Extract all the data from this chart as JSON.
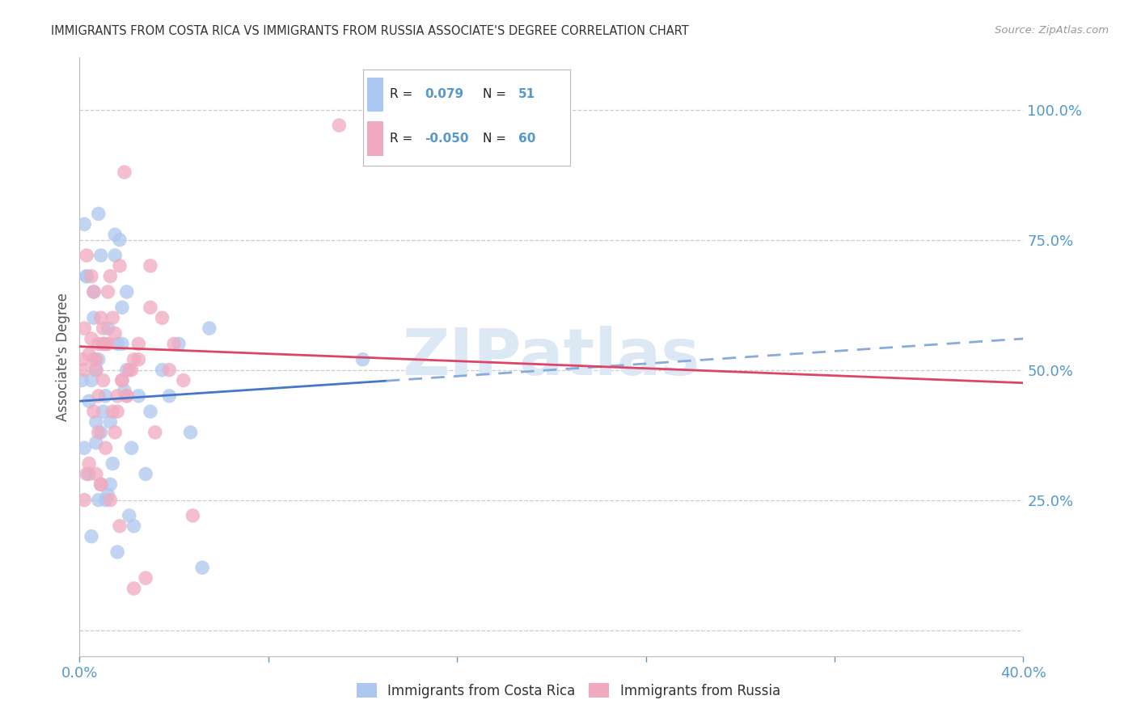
{
  "title": "IMMIGRANTS FROM COSTA RICA VS IMMIGRANTS FROM RUSSIA ASSOCIATE'S DEGREE CORRELATION CHART",
  "source": "Source: ZipAtlas.com",
  "ylabel": "Associate's Degree",
  "blue_color": "#adc8f0",
  "pink_color": "#f0aabf",
  "blue_line_color": "#4477cc",
  "pink_line_color": "#dd4466",
  "blue_dashed_color": "#88aadd",
  "axis_color": "#5599cc",
  "grid_color": "#cccccc",
  "title_color": "#333333",
  "watermark_text": "ZIPatlas",
  "legend_label1": "Immigrants from Costa Rica",
  "legend_label2": "Immigrants from Russia",
  "r1": "0.079",
  "n1": "51",
  "r2": "-0.050",
  "n2": "60",
  "xlim": [
    0.0,
    0.4
  ],
  "ylim": [
    -0.05,
    1.1
  ],
  "y_ticks": [
    0.0,
    0.25,
    0.5,
    0.75,
    1.0
  ],
  "y_tick_labels": [
    "",
    "25.0%",
    "50.0%",
    "75.0%",
    "100.0%"
  ],
  "x_tick_positions": [
    0.0,
    0.08,
    0.16,
    0.24,
    0.32,
    0.4
  ],
  "x_tick_labels": [
    "0.0%",
    "",
    "",
    "",
    "",
    "40.0%"
  ],
  "costa_rica_x": [
    0.005,
    0.01,
    0.018,
    0.025,
    0.008,
    0.012,
    0.02,
    0.03,
    0.035,
    0.003,
    0.007,
    0.015,
    0.022,
    0.004,
    0.009,
    0.016,
    0.028,
    0.006,
    0.011,
    0.019,
    0.013,
    0.017,
    0.002,
    0.008,
    0.014,
    0.021,
    0.005,
    0.01,
    0.016,
    0.023,
    0.007,
    0.012,
    0.003,
    0.009,
    0.015,
    0.02,
    0.001,
    0.006,
    0.011,
    0.018,
    0.004,
    0.008,
    0.013,
    0.002,
    0.007,
    0.12,
    0.055,
    0.038,
    0.042,
    0.047,
    0.052
  ],
  "costa_rica_y": [
    0.48,
    0.55,
    0.62,
    0.45,
    0.52,
    0.58,
    0.65,
    0.42,
    0.5,
    0.68,
    0.4,
    0.72,
    0.35,
    0.44,
    0.38,
    0.55,
    0.3,
    0.6,
    0.25,
    0.46,
    0.28,
    0.75,
    0.78,
    0.8,
    0.32,
    0.22,
    0.18,
    0.42,
    0.15,
    0.2,
    0.36,
    0.26,
    0.68,
    0.72,
    0.76,
    0.5,
    0.48,
    0.65,
    0.45,
    0.55,
    0.3,
    0.25,
    0.4,
    0.35,
    0.5,
    0.52,
    0.58,
    0.45,
    0.55,
    0.38,
    0.12
  ],
  "russia_x": [
    0.004,
    0.009,
    0.015,
    0.022,
    0.006,
    0.011,
    0.018,
    0.025,
    0.03,
    0.002,
    0.007,
    0.013,
    0.02,
    0.003,
    0.008,
    0.014,
    0.021,
    0.005,
    0.01,
    0.016,
    0.012,
    0.019,
    0.001,
    0.006,
    0.011,
    0.017,
    0.004,
    0.009,
    0.015,
    0.023,
    0.007,
    0.012,
    0.002,
    0.008,
    0.014,
    0.018,
    0.003,
    0.007,
    0.01,
    0.016,
    0.005,
    0.009,
    0.013,
    0.002,
    0.006,
    0.01,
    0.017,
    0.023,
    0.028,
    0.032,
    0.11,
    0.04,
    0.038,
    0.044,
    0.048,
    0.025,
    0.02,
    0.03,
    0.035,
    0.008
  ],
  "russia_y": [
    0.53,
    0.6,
    0.57,
    0.5,
    0.65,
    0.55,
    0.48,
    0.55,
    0.62,
    0.58,
    0.52,
    0.68,
    0.45,
    0.72,
    0.55,
    0.6,
    0.5,
    0.56,
    0.58,
    0.45,
    0.65,
    0.88,
    0.52,
    0.42,
    0.35,
    0.7,
    0.32,
    0.28,
    0.38,
    0.52,
    0.3,
    0.55,
    0.25,
    0.45,
    0.42,
    0.48,
    0.3,
    0.5,
    0.48,
    0.42,
    0.68,
    0.28,
    0.25,
    0.5,
    0.52,
    0.55,
    0.2,
    0.08,
    0.1,
    0.38,
    0.97,
    0.55,
    0.5,
    0.48,
    0.22,
    0.52,
    0.45,
    0.7,
    0.6,
    0.38
  ]
}
